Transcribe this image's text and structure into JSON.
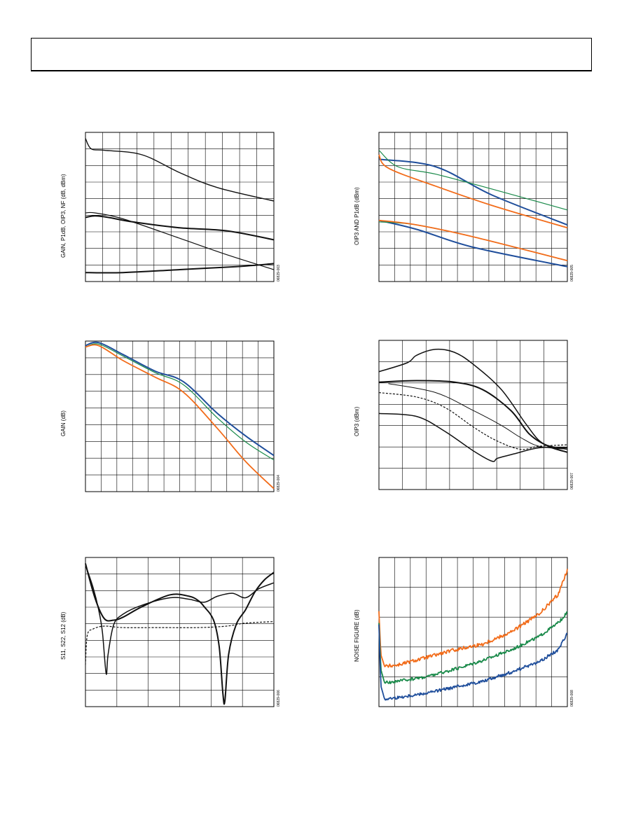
{
  "charts": [
    {
      "id": "c1",
      "type": "line",
      "ylabel": "GAIN, P1dB, OIP3, NF (dB, dBm)",
      "code": "06829-003",
      "grid": {
        "cols": 11,
        "rows": 9
      },
      "series": [
        {
          "color": "#111111",
          "width": 1.4,
          "points": [
            [
              0,
              0.96
            ],
            [
              0.03,
              0.89
            ],
            [
              0.1,
              0.88
            ],
            [
              0.3,
              0.85
            ],
            [
              0.5,
              0.73
            ],
            [
              0.7,
              0.63
            ],
            [
              1,
              0.54
            ]
          ]
        },
        {
          "color": "#111111",
          "width": 2,
          "points": [
            [
              0,
              0.43
            ],
            [
              0.05,
              0.44
            ],
            [
              0.12,
              0.43
            ],
            [
              0.25,
              0.4
            ],
            [
              0.5,
              0.36
            ],
            [
              0.75,
              0.34
            ],
            [
              1,
              0.28
            ]
          ]
        },
        {
          "color": "#111111",
          "width": 1.2,
          "points": [
            [
              0,
              0.46
            ],
            [
              0.05,
              0.46
            ],
            [
              0.2,
              0.42
            ],
            [
              0.5,
              0.29
            ],
            [
              0.75,
              0.18
            ],
            [
              1,
              0.08
            ]
          ]
        },
        {
          "color": "#111111",
          "width": 2,
          "points": [
            [
              0,
              0.06
            ],
            [
              0.2,
              0.06
            ],
            [
              0.5,
              0.08
            ],
            [
              0.8,
              0.1
            ],
            [
              1,
              0.12
            ]
          ]
        }
      ]
    },
    {
      "id": "c2",
      "type": "line",
      "ylabel": "OIP3 AND P1dB (dBm)",
      "code": "06829-005",
      "grid": {
        "cols": 12,
        "rows": 9
      },
      "series": [
        {
          "color": "#1f4e9b",
          "width": 2,
          "points": [
            [
              0,
              0.82
            ],
            [
              0.3,
              0.77
            ],
            [
              0.6,
              0.58
            ],
            [
              1,
              0.38
            ]
          ]
        },
        {
          "color": "#1a8a4a",
          "width": 1.2,
          "points": [
            [
              0,
              0.88
            ],
            [
              0.1,
              0.77
            ],
            [
              0.3,
              0.72
            ],
            [
              0.6,
              0.62
            ],
            [
              1,
              0.48
            ]
          ]
        },
        {
          "color": "#f26c1a",
          "width": 1.8,
          "points": [
            [
              0,
              0.85
            ],
            [
              0.05,
              0.76
            ],
            [
              0.3,
              0.64
            ],
            [
              0.6,
              0.51
            ],
            [
              1,
              0.36
            ]
          ]
        },
        {
          "color": "#1f4e9b",
          "width": 2,
          "points": [
            [
              0,
              0.41
            ],
            [
              0.2,
              0.35
            ],
            [
              0.5,
              0.23
            ],
            [
              1,
              0.1
            ]
          ]
        },
        {
          "color": "#1a8a4a",
          "width": 1.2,
          "points": [
            [
              0,
              0.4
            ],
            [
              0.2,
              0.38
            ],
            [
              0.5,
              0.3
            ],
            [
              1,
              0.14
            ]
          ]
        },
        {
          "color": "#f26c1a",
          "width": 1.8,
          "points": [
            [
              0,
              0.41
            ],
            [
              0.2,
              0.38
            ],
            [
              0.5,
              0.3
            ],
            [
              1,
              0.14
            ]
          ]
        }
      ]
    },
    {
      "id": "c3",
      "type": "line",
      "ylabel": "GAIN (dB)",
      "code": "06829-004",
      "grid": {
        "cols": 12,
        "rows": 9
      },
      "series": [
        {
          "color": "#1f4e9b",
          "width": 2,
          "points": [
            [
              0,
              0.97
            ],
            [
              0.07,
              0.99
            ],
            [
              0.2,
              0.91
            ],
            [
              0.37,
              0.8
            ],
            [
              0.52,
              0.73
            ],
            [
              0.7,
              0.52
            ],
            [
              0.85,
              0.37
            ],
            [
              1,
              0.24
            ]
          ]
        },
        {
          "color": "#1a8a4a",
          "width": 1.2,
          "points": [
            [
              0,
              0.96
            ],
            [
              0.07,
              0.98
            ],
            [
              0.2,
              0.9
            ],
            [
              0.37,
              0.79
            ],
            [
              0.52,
              0.71
            ],
            [
              0.7,
              0.49
            ],
            [
              0.85,
              0.33
            ],
            [
              1,
              0.21
            ]
          ]
        },
        {
          "color": "#f26c1a",
          "width": 1.8,
          "points": [
            [
              0,
              0.96
            ],
            [
              0.07,
              0.97
            ],
            [
              0.2,
              0.87
            ],
            [
              0.37,
              0.76
            ],
            [
              0.52,
              0.66
            ],
            [
              0.7,
              0.42
            ],
            [
              0.85,
              0.2
            ],
            [
              1,
              0.02
            ]
          ]
        }
      ]
    },
    {
      "id": "c4",
      "type": "line",
      "ylabel": "OIP3 (dBm)",
      "code": "06829-007",
      "grid": {
        "cols": 8,
        "rows": 7
      },
      "series": [
        {
          "color": "#111111",
          "width": 1.5,
          "points": [
            [
              0,
              0.79
            ],
            [
              0.15,
              0.85
            ],
            [
              0.2,
              0.9
            ],
            [
              0.3,
              0.94
            ],
            [
              0.4,
              0.92
            ],
            [
              0.5,
              0.84
            ],
            [
              0.65,
              0.67
            ],
            [
              0.78,
              0.44
            ],
            [
              0.87,
              0.31
            ],
            [
              1,
              0.27
            ]
          ]
        },
        {
          "color": "#111111",
          "width": 2,
          "points": [
            [
              0,
              0.72
            ],
            [
              0.2,
              0.73
            ],
            [
              0.4,
              0.72
            ],
            [
              0.55,
              0.67
            ],
            [
              0.7,
              0.53
            ],
            [
              0.8,
              0.37
            ],
            [
              0.9,
              0.29
            ],
            [
              1,
              0.25
            ]
          ]
        },
        {
          "color": "#111111",
          "width": 1,
          "points": [
            [
              0.05,
              0.71
            ],
            [
              0.3,
              0.65
            ],
            [
              0.5,
              0.53
            ],
            [
              0.65,
              0.43
            ],
            [
              0.75,
              0.35
            ],
            [
              0.85,
              0.29
            ],
            [
              1,
              0.27
            ]
          ]
        },
        {
          "color": "#111111",
          "width": 1.2,
          "dash": "3,2",
          "points": [
            [
              0,
              0.65
            ],
            [
              0.2,
              0.62
            ],
            [
              0.35,
              0.55
            ],
            [
              0.5,
              0.42
            ],
            [
              0.62,
              0.33
            ],
            [
              0.75,
              0.27
            ],
            [
              0.85,
              0.29
            ],
            [
              1,
              0.3
            ]
          ]
        },
        {
          "color": "#111111",
          "width": 1.5,
          "points": [
            [
              0,
              0.51
            ],
            [
              0.2,
              0.49
            ],
            [
              0.35,
              0.39
            ],
            [
              0.5,
              0.26
            ],
            [
              0.6,
              0.19
            ],
            [
              0.63,
              0.21
            ],
            [
              0.72,
              0.24
            ],
            [
              0.85,
              0.28
            ],
            [
              1,
              0.28
            ]
          ]
        }
      ]
    },
    {
      "id": "c5",
      "type": "line",
      "ylabel": "S11, S22, S12 (dB)",
      "code": "06829-006",
      "grid": {
        "cols": 6,
        "rows": 9
      },
      "series": [
        {
          "color": "#111111",
          "width": 2,
          "points": [
            [
              0,
              0.96
            ],
            [
              0.05,
              0.73
            ],
            [
              0.1,
              0.59
            ],
            [
              0.15,
              0.58
            ],
            [
              0.2,
              0.6
            ],
            [
              0.3,
              0.67
            ],
            [
              0.45,
              0.75
            ],
            [
              0.55,
              0.74
            ],
            [
              0.6,
              0.71
            ],
            [
              0.63,
              0.67
            ],
            [
              0.68,
              0.58
            ],
            [
              0.71,
              0.4
            ],
            [
              0.73,
              0.08
            ],
            [
              0.74,
              0.04
            ],
            [
              0.76,
              0.35
            ],
            [
              0.8,
              0.55
            ],
            [
              0.85,
              0.65
            ],
            [
              0.9,
              0.77
            ],
            [
              0.95,
              0.85
            ],
            [
              1,
              0.9
            ]
          ]
        },
        {
          "color": "#111111",
          "width": 1.5,
          "points": [
            [
              0,
              0.95
            ],
            [
              0.04,
              0.8
            ],
            [
              0.07,
              0.65
            ],
            [
              0.09,
              0.5
            ],
            [
              0.11,
              0.22
            ],
            [
              0.12,
              0.35
            ],
            [
              0.15,
              0.55
            ],
            [
              0.2,
              0.62
            ],
            [
              0.3,
              0.68
            ],
            [
              0.45,
              0.73
            ],
            [
              0.55,
              0.72
            ],
            [
              0.63,
              0.7
            ],
            [
              0.7,
              0.74
            ],
            [
              0.78,
              0.76
            ],
            [
              0.85,
              0.73
            ],
            [
              0.92,
              0.79
            ],
            [
              1,
              0.83
            ]
          ]
        },
        {
          "color": "#111111",
          "width": 1.2,
          "dash": "3,2",
          "points": [
            [
              0,
              0.28
            ],
            [
              0.01,
              0.48
            ],
            [
              0.04,
              0.52
            ],
            [
              0.1,
              0.54
            ],
            [
              0.2,
              0.53
            ],
            [
              0.4,
              0.53
            ],
            [
              0.6,
              0.53
            ],
            [
              0.75,
              0.54
            ],
            [
              0.85,
              0.56
            ],
            [
              1,
              0.57
            ]
          ]
        }
      ]
    },
    {
      "id": "c6",
      "type": "line",
      "ylabel": "NOISE FIGURE (dB)",
      "code": "06829-008",
      "grid": {
        "cols": 12,
        "rows": 5
      },
      "series": [
        {
          "color": "#f26c1a",
          "width": 1.8,
          "noise": 0.012,
          "points": [
            [
              0,
              0.64
            ],
            [
              0.01,
              0.35
            ],
            [
              0.03,
              0.27
            ],
            [
              0.1,
              0.28
            ],
            [
              0.25,
              0.33
            ],
            [
              0.4,
              0.38
            ],
            [
              0.55,
              0.42
            ],
            [
              0.7,
              0.5
            ],
            [
              0.85,
              0.62
            ],
            [
              0.95,
              0.75
            ],
            [
              1,
              0.92
            ]
          ]
        },
        {
          "color": "#1a8a4a",
          "width": 1.8,
          "noise": 0.01,
          "points": [
            [
              0,
              0.56
            ],
            [
              0.01,
              0.25
            ],
            [
              0.03,
              0.16
            ],
            [
              0.1,
              0.17
            ],
            [
              0.25,
              0.2
            ],
            [
              0.4,
              0.25
            ],
            [
              0.55,
              0.31
            ],
            [
              0.7,
              0.38
            ],
            [
              0.85,
              0.47
            ],
            [
              0.95,
              0.56
            ],
            [
              1,
              0.63
            ]
          ]
        },
        {
          "color": "#1f4e9b",
          "width": 1.8,
          "noise": 0.01,
          "points": [
            [
              0,
              0.55
            ],
            [
              0.01,
              0.14
            ],
            [
              0.03,
              0.05
            ],
            [
              0.1,
              0.06
            ],
            [
              0.25,
              0.09
            ],
            [
              0.4,
              0.13
            ],
            [
              0.55,
              0.17
            ],
            [
              0.7,
              0.23
            ],
            [
              0.85,
              0.3
            ],
            [
              0.95,
              0.38
            ],
            [
              1,
              0.49
            ]
          ]
        }
      ]
    }
  ]
}
